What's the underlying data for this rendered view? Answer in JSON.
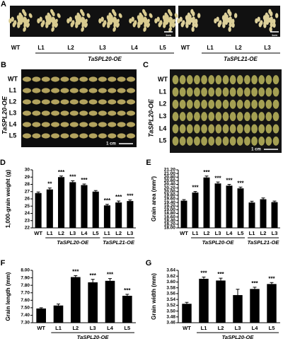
{
  "panel_a": {
    "label": "A",
    "left_lines": [
      "WT",
      "L1",
      "L2",
      "L3",
      "L4",
      "L5"
    ],
    "left_group": "TaSPL20-OE",
    "left_scale": "1cm",
    "right_lines": [
      "WT",
      "L1",
      "L2",
      "L3"
    ],
    "right_group": "TaSPL21-OE",
    "right_scale": "1cm"
  },
  "panel_b": {
    "label": "B",
    "rows": [
      "WT",
      "L1",
      "L2",
      "L3",
      "L4",
      "L5"
    ],
    "group": "TaSPL20-OE",
    "scale": "1 cm"
  },
  "panel_c": {
    "label": "C",
    "rows": [
      "WT",
      "L1",
      "L2",
      "L3",
      "L4",
      "L5"
    ],
    "group": "TaSPL20-OE",
    "scale": "1 cm"
  },
  "chart_data": [
    {
      "type": "bar",
      "label": "D",
      "y_label": "1,000-grain weight (g)",
      "color": "#000000",
      "categories": [
        "WT",
        "L1",
        "L2",
        "L3",
        "L4",
        "L5",
        "L1",
        "L2",
        "L3"
      ],
      "values": [
        26.8,
        27.3,
        29.0,
        28.3,
        27.9,
        27.0,
        25.1,
        25.5,
        25.7
      ],
      "errors": [
        0.15,
        0.2,
        0.15,
        0.2,
        0.15,
        0.15,
        0.15,
        0.2,
        0.15
      ],
      "significance": [
        null,
        "**",
        "***",
        "***",
        "***",
        null,
        "***",
        "***",
        "***"
      ],
      "groups": [
        {
          "label": "TaSPL20-OE",
          "span": [
            1,
            5
          ]
        },
        {
          "label": "TaSPL21-OE",
          "span": [
            6,
            8
          ]
        }
      ],
      "ylim": [
        22,
        30
      ],
      "yticks": [
        22,
        23,
        24,
        25,
        26,
        27,
        28,
        29,
        30
      ]
    },
    {
      "type": "bar",
      "label": "E",
      "y_label": "Grain area (mm²)",
      "color": "#000000",
      "categories": [
        "WT",
        "L1",
        "L2",
        "L3",
        "L4",
        "L5",
        "L1",
        "L2",
        "L3"
      ],
      "values": [
        19.5,
        19.95,
        20.78,
        20.45,
        20.33,
        20.18,
        19.4,
        19.58,
        19.42
      ],
      "errors": [
        0.06,
        0.06,
        0.08,
        0.08,
        0.07,
        0.07,
        0.07,
        0.07,
        0.06
      ],
      "significance": [
        null,
        "***",
        "***",
        "***",
        "***",
        "***",
        null,
        null,
        null
      ],
      "groups": [
        {
          "label": "TaSPL20-OE",
          "span": [
            1,
            5
          ]
        },
        {
          "label": "TaSPL21-OE",
          "span": [
            6,
            8
          ]
        }
      ],
      "ylim": [
        18,
        21.2
      ],
      "yticks": [
        {
          "value": 18,
          "label": "18.00"
        },
        {
          "value": 18.2,
          "label": "18.20"
        },
        {
          "value": 18.4,
          "label": "18.40"
        },
        {
          "value": 18.6,
          "label": "18.60"
        },
        {
          "value": 18.8,
          "label": "18.80"
        },
        {
          "value": 19,
          "label": "19.00"
        },
        {
          "value": 19.2,
          "label": "19.20"
        },
        {
          "value": 19.4,
          "label": "19.40"
        },
        {
          "value": 19.6,
          "label": "19.60"
        },
        {
          "value": 19.8,
          "label": "19.80"
        },
        {
          "value": 20,
          "label": "20.00"
        },
        {
          "value": 20.2,
          "label": "20.20"
        },
        {
          "value": 20.4,
          "label": "20.40"
        },
        {
          "value": 20.6,
          "label": "20.60"
        },
        {
          "value": 20.8,
          "label": "20.80"
        },
        {
          "value": 21,
          "label": "21.00"
        },
        {
          "value": 21.2,
          "label": "21.20"
        }
      ]
    },
    {
      "type": "bar",
      "label": "F",
      "y_label": "Grain  length (mm)",
      "color": "#000000",
      "categories": [
        "WT",
        "L1",
        "L2",
        "L3",
        "L4",
        "L5"
      ],
      "values": [
        7.49,
        7.53,
        7.91,
        7.84,
        7.86,
        7.66
      ],
      "errors": [
        0.01,
        0.02,
        0.02,
        0.04,
        0.03,
        0.02
      ],
      "significance": [
        null,
        null,
        "***",
        "***",
        "***",
        "***"
      ],
      "groups": [
        {
          "label": "TaSPL20-OE",
          "span": [
            1,
            5
          ]
        }
      ],
      "ylim": [
        7.3,
        8.0
      ],
      "yticks": [
        {
          "value": 7.3,
          "label": "7.30"
        },
        {
          "value": 7.4,
          "label": "7.40"
        },
        {
          "value": 7.5,
          "label": "7.50"
        },
        {
          "value": 7.6,
          "label": "7.60"
        },
        {
          "value": 7.7,
          "label": "7.70"
        },
        {
          "value": 7.8,
          "label": "7.80"
        },
        {
          "value": 7.9,
          "label": "7.90"
        },
        {
          "value": 8.0,
          "label": "8.00"
        }
      ]
    },
    {
      "type": "bar",
      "label": "G",
      "y_label": "Grain width (mm)",
      "color": "#000000",
      "categories": [
        "WT",
        "L1",
        "L2",
        "L3",
        "L4",
        "L5"
      ],
      "values": [
        3.525,
        3.611,
        3.605,
        3.555,
        3.576,
        3.593
      ],
      "errors": [
        0.005,
        0.006,
        0.008,
        0.02,
        0.006,
        0.005
      ],
      "significance": [
        null,
        "***",
        "***",
        null,
        "***",
        "***"
      ],
      "groups": [
        {
          "label": "TaSPL20-OE",
          "span": [
            1,
            5
          ]
        }
      ],
      "ylim": [
        3.46,
        3.64
      ],
      "yticks": [
        {
          "value": 3.46,
          "label": "3.46"
        },
        {
          "value": 3.48,
          "label": "3.48"
        },
        {
          "value": 3.5,
          "label": "3.50"
        },
        {
          "value": 3.52,
          "label": "3.52"
        },
        {
          "value": 3.54,
          "label": "3.54"
        },
        {
          "value": 3.56,
          "label": "3.56"
        },
        {
          "value": 3.58,
          "label": "3.58"
        },
        {
          "value": 3.6,
          "label": "3.60"
        },
        {
          "value": 3.62,
          "label": "3.62"
        },
        {
          "value": 3.64,
          "label": "3.64"
        }
      ]
    }
  ]
}
